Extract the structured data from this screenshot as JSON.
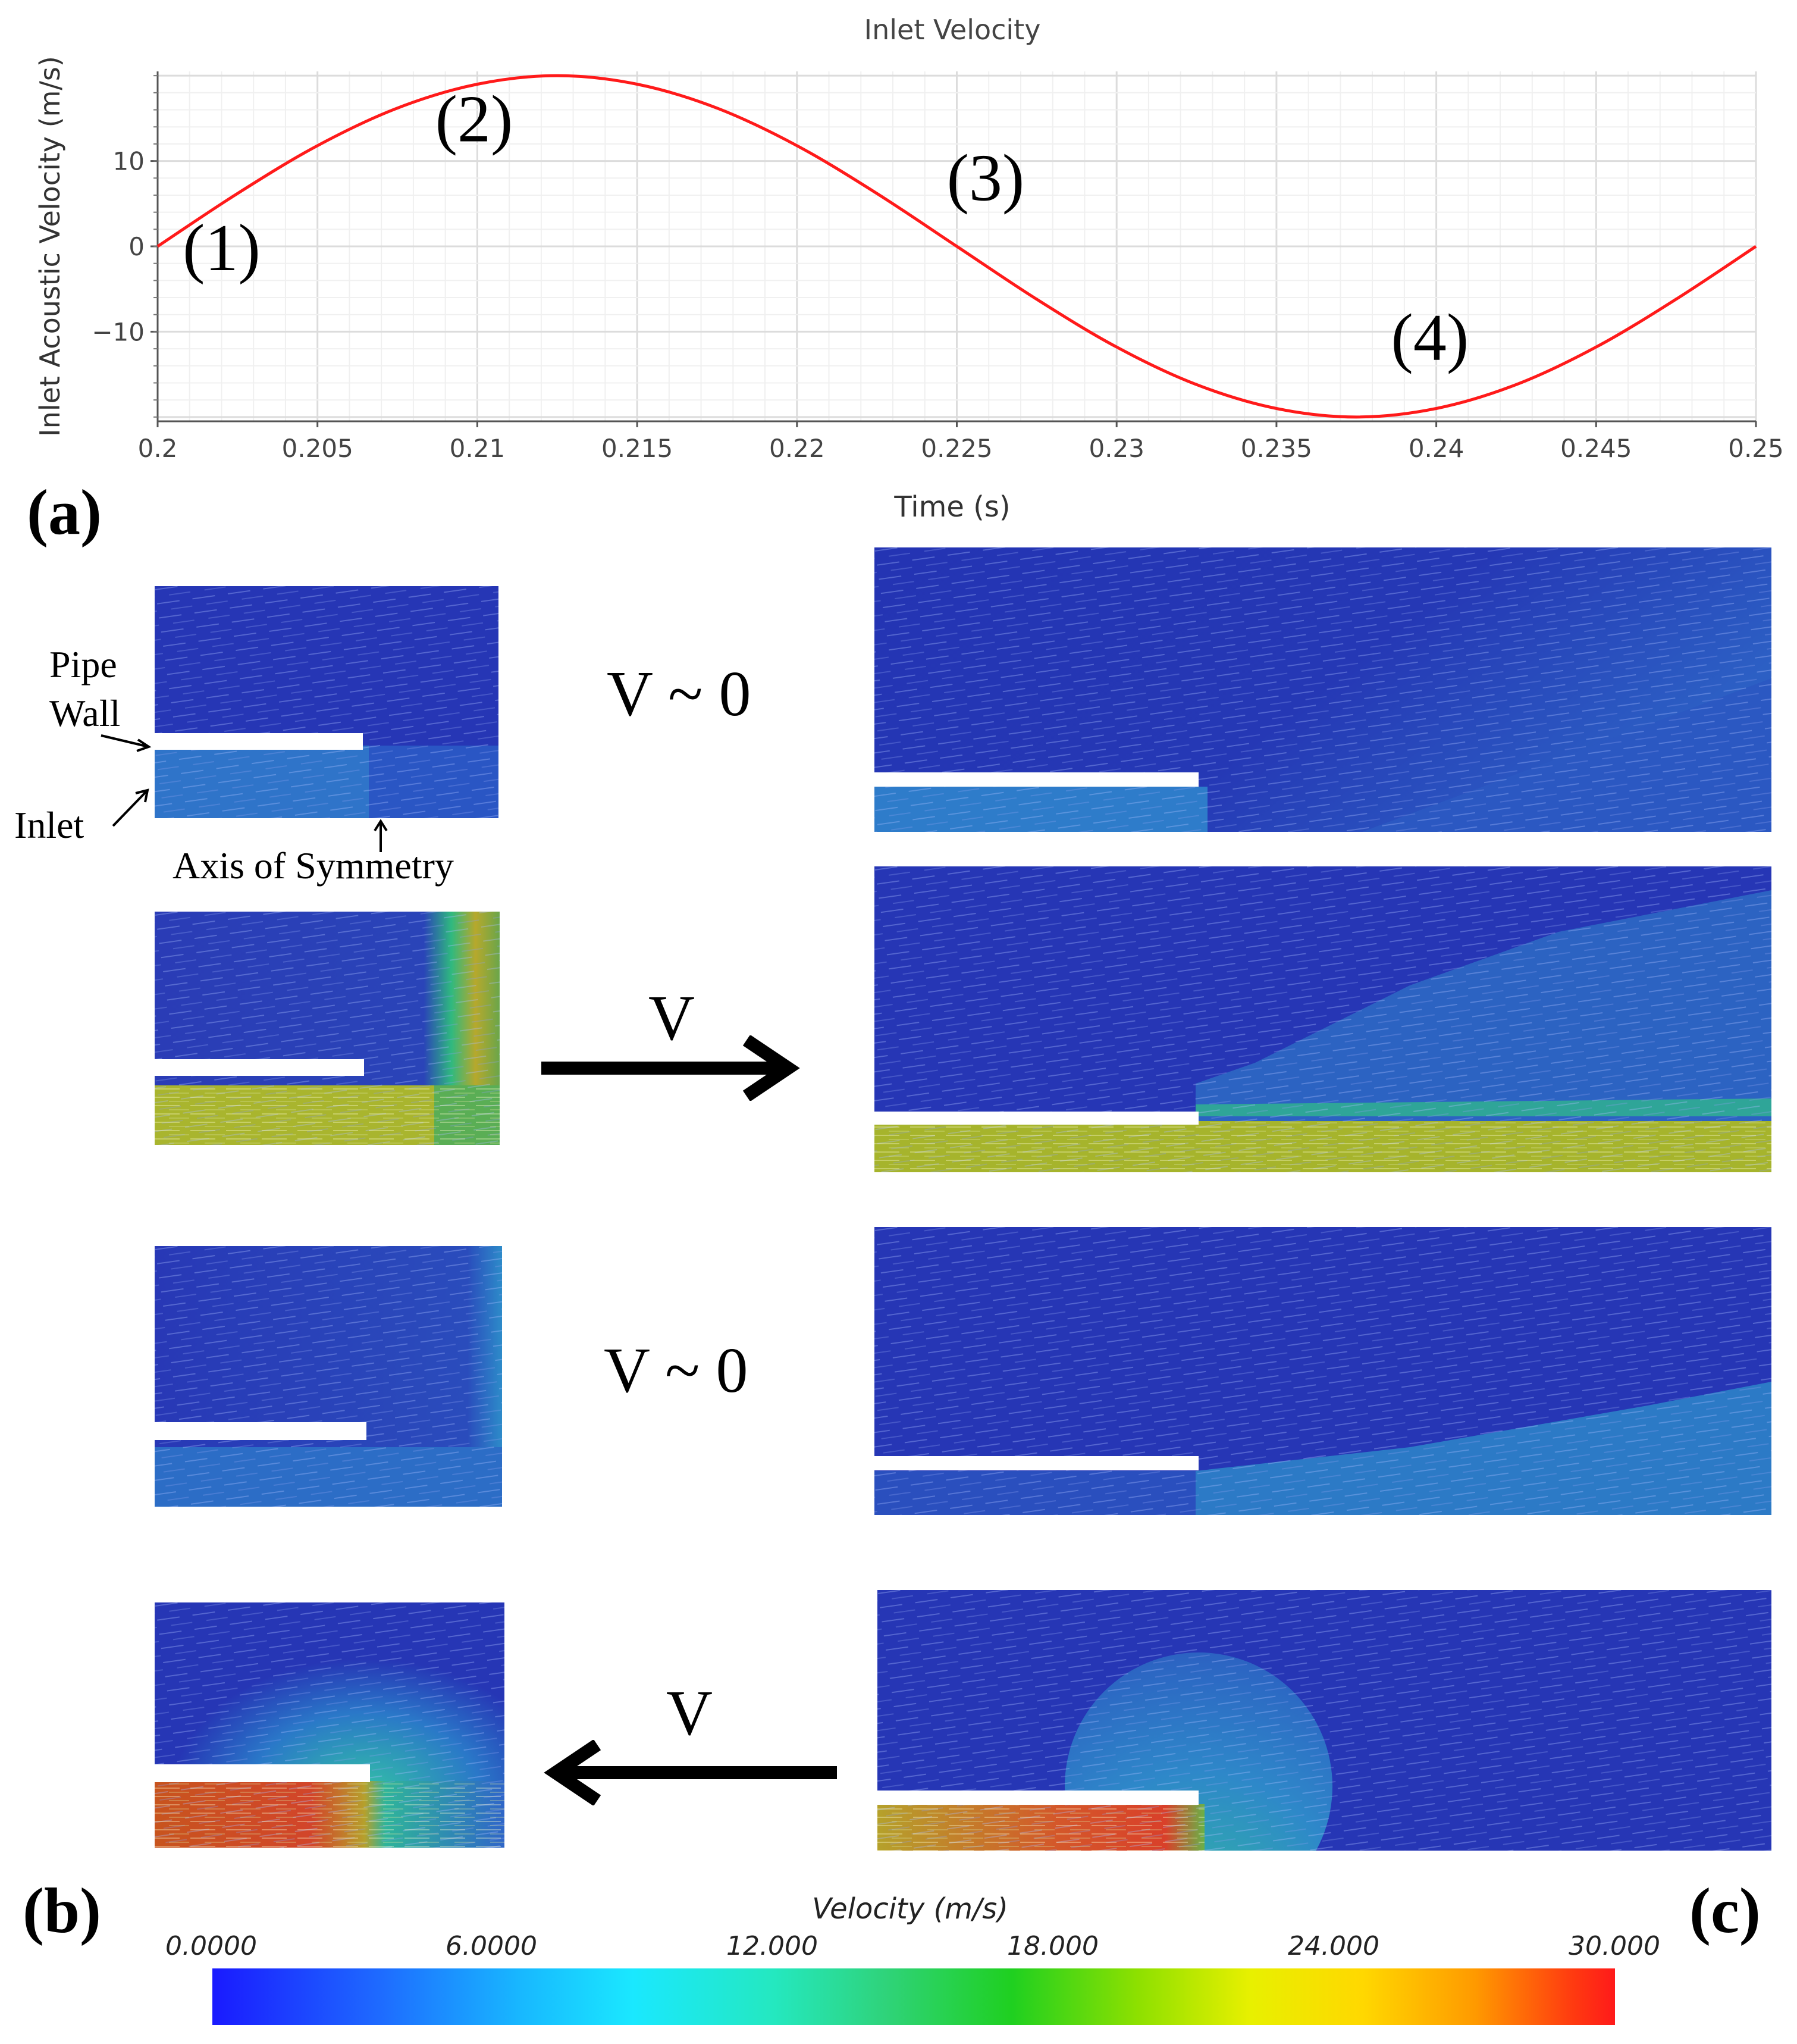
{
  "chart_data": {
    "type": "line",
    "title": "Inlet Velocity",
    "xlabel": "Time (s)",
    "ylabel": "Inlet Acoustic Velocity (m/s)",
    "xlim": [
      0.2,
      0.25
    ],
    "ylim": [
      -20.5,
      20.5
    ],
    "xticks": [
      "0.2",
      "0.205",
      "0.21",
      "0.215",
      "0.22",
      "0.225",
      "0.23",
      "0.235",
      "0.24",
      "0.245",
      "0.25"
    ],
    "yticks": [
      "10",
      "0",
      "−10"
    ],
    "series": [
      {
        "name": "inlet velocity",
        "color": "#ff1a1a",
        "x": [
          0.2,
          0.2025,
          0.205,
          0.2075,
          0.21,
          0.2125,
          0.215,
          0.2175,
          0.22,
          0.2225,
          0.225,
          0.2275,
          0.23,
          0.2325,
          0.235,
          0.2375,
          0.24,
          0.2425,
          0.245,
          0.2475,
          0.25
        ],
        "y": [
          0.0,
          6.2,
          11.8,
          16.2,
          19.0,
          20.0,
          19.0,
          16.2,
          11.8,
          6.2,
          0.0,
          -6.2,
          -11.8,
          -16.2,
          -19.0,
          -20.0,
          -19.0,
          -16.2,
          -11.8,
          -6.2,
          0.0
        ]
      }
    ],
    "annotations": [
      {
        "text": "(1)",
        "x": 0.202,
        "y": -2.8
      },
      {
        "text": "(2)",
        "x": 0.2099,
        "y": 12.3
      },
      {
        "text": "(3)",
        "x": 0.2259,
        "y": 5.4
      },
      {
        "text": "(4)",
        "x": 0.2398,
        "y": -13.3
      }
    ],
    "grid": true
  },
  "panel_labels": {
    "a": "(a)",
    "b": "(b)",
    "c": "(c)"
  },
  "stages": {
    "rest1": "V ~ 0",
    "out": "V",
    "rest2": "V ~ 0",
    "in": "V"
  },
  "annotations": {
    "pipe": "Pipe",
    "wall": "Wall",
    "inlet": "Inlet",
    "axis": "Axis of Symmetry"
  },
  "colorbar": {
    "title": "Velocity (m/s)",
    "ticks": [
      "0.0000",
      "6.0000",
      "12.000",
      "18.000",
      "24.000",
      "30.000"
    ]
  },
  "colors": {
    "curve": "#ff1a1a",
    "field_low": "#2233b3",
    "field_jet": "#a7b72a"
  }
}
